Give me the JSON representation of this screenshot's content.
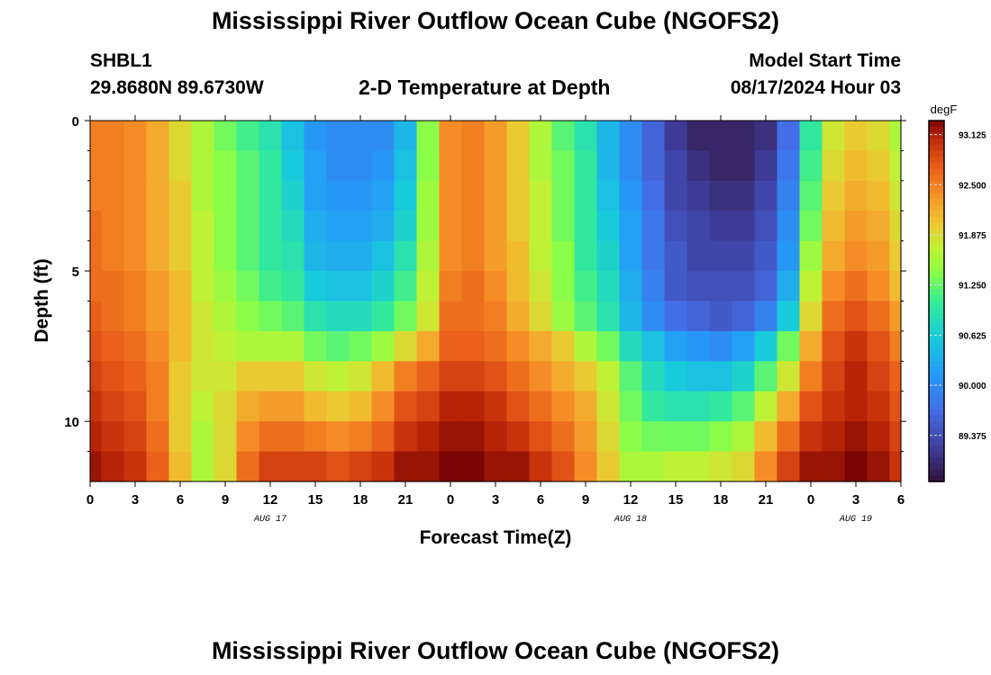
{
  "header": {
    "title": "Mississippi River Outflow Ocean Cube (NGOFS2)",
    "station": "SHBL1",
    "location": "29.8680N  89.6730W",
    "subtitle": "2-D Temperature at Depth",
    "model_start_label": "Model Start Time",
    "model_start_value": "08/17/2024 Hour 03"
  },
  "footer": {
    "title": "Mississippi River Outflow Ocean Cube (NGOFS2)"
  },
  "chart_data": {
    "type": "heatmap",
    "title": "2-D Temperature at Depth",
    "xlabel": "Forecast Time(Z)",
    "ylabel": "Depth (ft)",
    "x_units": "hours since 08/17 00Z",
    "xlim": [
      0,
      54
    ],
    "ylim": [
      12,
      0
    ],
    "x_ticks": [
      0,
      3,
      6,
      9,
      12,
      15,
      18,
      21,
      24,
      27,
      30,
      33,
      36,
      39,
      42,
      45,
      48,
      51,
      54
    ],
    "x_tick_labels": [
      "0",
      "3",
      "6",
      "9",
      "12",
      "15",
      "18",
      "21",
      "0",
      "3",
      "6",
      "9",
      "12",
      "15",
      "18",
      "21",
      "0",
      "3",
      "6"
    ],
    "date_labels": [
      {
        "x": 12,
        "label": "AUG 17"
      },
      {
        "x": 36,
        "label": "AUG 18"
      },
      {
        "x": 51,
        "label": "AUG 19"
      }
    ],
    "y_ticks": [
      0,
      5,
      10
    ],
    "y_tick_labels": [
      "0",
      "5",
      "10"
    ],
    "colorbar": {
      "units": "degF",
      "range": [
        88.8,
        93.3
      ],
      "ticks": [
        93.125,
        92.5,
        91.875,
        91.25,
        90.625,
        90.0,
        89.375
      ],
      "tick_labels": [
        "93.125",
        "92.500",
        "91.875",
        "91.250",
        "90.625",
        "90.000",
        "89.375"
      ]
    },
    "depth_levels_ft": [
      0.5,
      1.5,
      2.5,
      3.5,
      4.5,
      5.5,
      6.5,
      7.5,
      8.5,
      9.5,
      10.5,
      11.5
    ],
    "time_hours": [
      0,
      1.5,
      3,
      4.5,
      6,
      7.5,
      9,
      10.5,
      12,
      13.5,
      15,
      16.5,
      18,
      19.5,
      21,
      22.5,
      24,
      25.5,
      27,
      28.5,
      30,
      31.5,
      33,
      34.5,
      36,
      37.5,
      39,
      40.5,
      42,
      43.5,
      45,
      46.5,
      48,
      49.5,
      51,
      52.5,
      54
    ],
    "temperature_degF": [
      [
        92.5,
        92.5,
        92.4,
        92.2,
        91.9,
        91.6,
        91.3,
        91.1,
        90.9,
        90.5,
        90.1,
        90.0,
        90.0,
        90.0,
        90.4,
        91.4,
        92.4,
        92.5,
        92.3,
        92.0,
        91.6,
        91.2,
        90.9,
        90.4,
        90.0,
        89.6,
        89.2,
        89.0,
        89.0,
        89.0,
        89.1,
        89.7,
        91.0,
        91.8,
        92.0,
        91.9,
        91.6
      ],
      [
        92.5,
        92.5,
        92.4,
        92.2,
        91.9,
        91.6,
        91.4,
        91.2,
        91.0,
        90.6,
        90.2,
        90.0,
        90.0,
        90.1,
        90.5,
        91.4,
        92.4,
        92.5,
        92.3,
        92.0,
        91.6,
        91.3,
        91.0,
        90.4,
        90.0,
        89.6,
        89.3,
        89.1,
        89.0,
        89.0,
        89.2,
        89.8,
        91.1,
        91.9,
        92.1,
        92.0,
        91.7
      ],
      [
        92.5,
        92.5,
        92.4,
        92.2,
        92.0,
        91.6,
        91.4,
        91.2,
        91.0,
        90.7,
        90.2,
        90.1,
        90.1,
        90.2,
        90.6,
        91.5,
        92.4,
        92.5,
        92.3,
        92.0,
        91.7,
        91.3,
        91.0,
        90.5,
        90.1,
        89.7,
        89.3,
        89.2,
        89.1,
        89.1,
        89.3,
        89.9,
        91.2,
        92.0,
        92.2,
        92.1,
        91.8
      ],
      [
        92.6,
        92.5,
        92.4,
        92.2,
        92.0,
        91.7,
        91.4,
        91.2,
        91.0,
        90.8,
        90.3,
        90.2,
        90.2,
        90.3,
        90.7,
        91.5,
        92.4,
        92.5,
        92.3,
        92.0,
        91.7,
        91.3,
        91.0,
        90.6,
        90.2,
        89.8,
        89.4,
        89.3,
        89.2,
        89.2,
        89.4,
        90.0,
        91.3,
        92.1,
        92.3,
        92.2,
        91.9
      ],
      [
        92.6,
        92.5,
        92.4,
        92.2,
        92.0,
        91.7,
        91.4,
        91.2,
        91.0,
        90.9,
        90.4,
        90.3,
        90.3,
        90.5,
        90.9,
        91.6,
        92.4,
        92.5,
        92.3,
        92.1,
        91.7,
        91.4,
        91.0,
        90.7,
        90.2,
        89.8,
        89.5,
        89.3,
        89.3,
        89.3,
        89.5,
        90.1,
        91.5,
        92.2,
        92.4,
        92.3,
        92.0
      ],
      [
        92.6,
        92.6,
        92.5,
        92.3,
        92.1,
        91.7,
        91.5,
        91.3,
        91.1,
        91.0,
        90.6,
        90.5,
        90.5,
        90.7,
        91.1,
        91.7,
        92.5,
        92.6,
        92.4,
        92.1,
        91.8,
        91.4,
        91.1,
        90.8,
        90.3,
        89.9,
        89.5,
        89.4,
        89.4,
        89.4,
        89.6,
        90.3,
        91.7,
        92.4,
        92.6,
        92.4,
        92.1
      ],
      [
        92.7,
        92.6,
        92.5,
        92.3,
        92.1,
        91.8,
        91.6,
        91.4,
        91.3,
        91.2,
        90.9,
        90.8,
        90.8,
        91.0,
        91.3,
        91.8,
        92.6,
        92.6,
        92.5,
        92.2,
        91.9,
        91.5,
        91.2,
        90.9,
        90.4,
        90.0,
        89.7,
        89.6,
        89.5,
        89.6,
        89.9,
        90.6,
        91.9,
        92.6,
        92.8,
        92.6,
        92.3
      ],
      [
        92.8,
        92.7,
        92.6,
        92.4,
        92.1,
        91.8,
        91.7,
        91.6,
        91.6,
        91.6,
        91.3,
        91.2,
        91.3,
        91.5,
        91.9,
        92.2,
        92.7,
        92.7,
        92.6,
        92.4,
        92.2,
        92.0,
        91.6,
        91.3,
        90.8,
        90.5,
        90.2,
        90.1,
        90.0,
        90.2,
        90.6,
        91.3,
        92.2,
        92.8,
        93.0,
        92.8,
        92.5
      ],
      [
        92.9,
        92.8,
        92.7,
        92.5,
        92.0,
        91.8,
        91.8,
        92.0,
        92.0,
        92.0,
        91.8,
        91.7,
        91.8,
        92.1,
        92.5,
        92.7,
        92.9,
        92.9,
        92.8,
        92.6,
        92.4,
        92.2,
        92.0,
        91.7,
        91.2,
        90.8,
        90.6,
        90.5,
        90.5,
        90.7,
        91.2,
        91.8,
        92.5,
        92.9,
        93.1,
        92.9,
        92.7
      ],
      [
        93.0,
        92.9,
        92.8,
        92.5,
        92.0,
        91.7,
        91.9,
        92.2,
        92.3,
        92.3,
        92.1,
        92.0,
        92.1,
        92.4,
        92.8,
        92.9,
        93.1,
        93.1,
        93.0,
        92.8,
        92.6,
        92.4,
        92.2,
        91.8,
        91.3,
        91.0,
        90.9,
        90.9,
        91.0,
        91.2,
        91.7,
        92.2,
        92.8,
        93.0,
        93.1,
        93.0,
        92.8
      ],
      [
        93.1,
        93.0,
        92.9,
        92.6,
        92.0,
        91.6,
        91.9,
        92.4,
        92.6,
        92.6,
        92.5,
        92.4,
        92.5,
        92.7,
        93.0,
        93.1,
        93.2,
        93.2,
        93.1,
        93.0,
        92.8,
        92.6,
        92.3,
        91.9,
        91.4,
        91.3,
        91.3,
        91.3,
        91.4,
        91.6,
        92.1,
        92.6,
        93.0,
        93.1,
        93.2,
        93.1,
        92.9
      ],
      [
        93.2,
        93.1,
        93.0,
        92.7,
        92.1,
        91.6,
        91.9,
        92.6,
        92.9,
        92.9,
        92.9,
        92.8,
        92.9,
        93.0,
        93.2,
        93.2,
        93.3,
        93.3,
        93.2,
        93.2,
        93.0,
        92.8,
        92.4,
        92.0,
        91.6,
        91.6,
        91.7,
        91.7,
        91.8,
        91.9,
        92.4,
        92.9,
        93.2,
        93.2,
        93.3,
        93.2,
        93.0
      ]
    ]
  }
}
